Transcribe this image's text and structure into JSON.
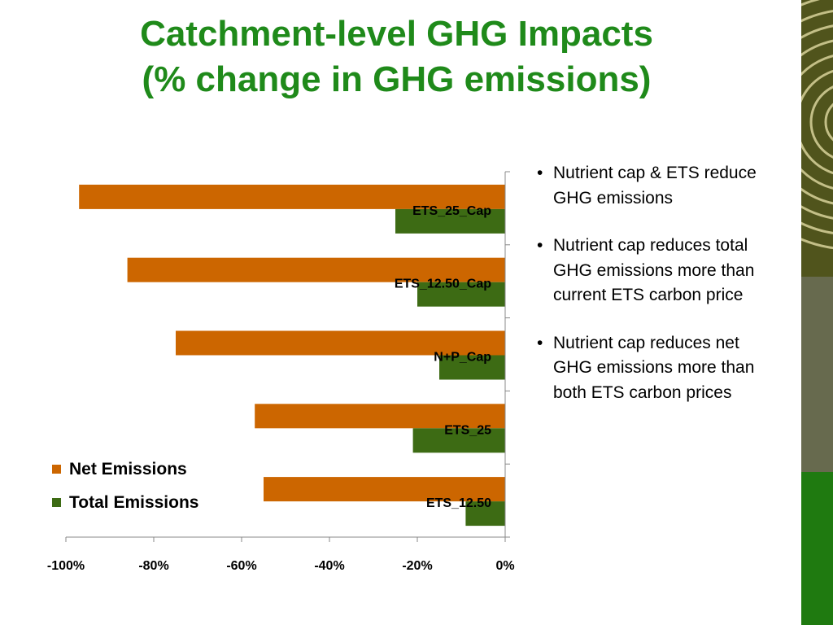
{
  "slide": {
    "title_line1": "Catchment-level GHG Impacts",
    "title_line2": "(% change in GHG emissions)"
  },
  "bullets": [
    "Nutrient cap & ETS reduce GHG emissions",
    "Nutrient cap reduces total GHG emissions more than current ETS carbon price",
    "Nutrient cap reduces net GHG emissions more than both ETS carbon prices"
  ],
  "colors": {
    "title": "#1f8a1a",
    "net": "#cc6600",
    "total": "#3d6b14",
    "sidebar_top": "#50541c",
    "sidebar_mid": "#676a4e",
    "sidebar_bottom": "#1f7a10"
  },
  "chart_data": {
    "type": "bar",
    "orientation": "horizontal",
    "categories": [
      "ETS_25_Cap",
      "ETS_12.50_Cap",
      "N+P_Cap",
      "ETS_25",
      "ETS_12.50"
    ],
    "series": [
      {
        "name": "Net Emissions",
        "values": [
          -97,
          -86,
          -75,
          -57,
          -55
        ]
      },
      {
        "name": "Total Emissions",
        "values": [
          -25,
          -20,
          -15,
          -21,
          -9
        ]
      }
    ],
    "xlim": [
      -100,
      0
    ],
    "xticks": [
      "-100%",
      "-80%",
      "-60%",
      "-40%",
      "-20%",
      "0%"
    ],
    "legend_position": "bottom-left",
    "grid": false
  }
}
